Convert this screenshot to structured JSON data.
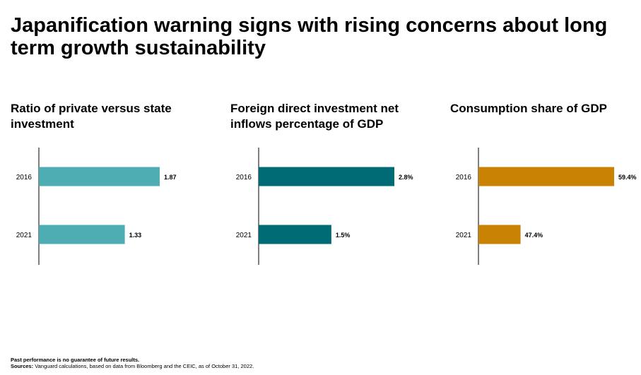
{
  "title": "Japanification warning signs with rising concerns about long term growth sustainability",
  "chart_data": [
    {
      "type": "bar",
      "orientation": "horizontal",
      "title": "Ratio of private versus state investment",
      "categories": [
        "2016",
        "2021"
      ],
      "values": [
        1.87,
        1.33
      ],
      "labels": [
        "1.87",
        "1.33"
      ],
      "xlim": [
        0,
        2.1
      ],
      "color": "#4dadb3"
    },
    {
      "type": "bar",
      "orientation": "horizontal",
      "title": "Foreign direct investment net inflows percentage of GDP",
      "categories": [
        "2016",
        "2021"
      ],
      "values": [
        2.8,
        1.5
      ],
      "labels": [
        "2.8%",
        "1.5%"
      ],
      "xlim": [
        0,
        2.8
      ],
      "color": "#006b75"
    },
    {
      "type": "bar",
      "orientation": "horizontal",
      "title": "Consumption share of GDP",
      "categories": [
        "2016",
        "2021"
      ],
      "values": [
        59.4,
        47.4
      ],
      "labels": [
        "59.4%",
        "47.4%"
      ],
      "xlim": [
        42,
        59.4
      ],
      "color": "#c98204"
    }
  ],
  "footer": {
    "disclaimer": "Past performance is no guarantee of future results.",
    "sources_label": "Sources:",
    "sources_text": " Vanguard calculations, based on data from Bloomberg and the CEIC, as of October 31, 2022."
  }
}
